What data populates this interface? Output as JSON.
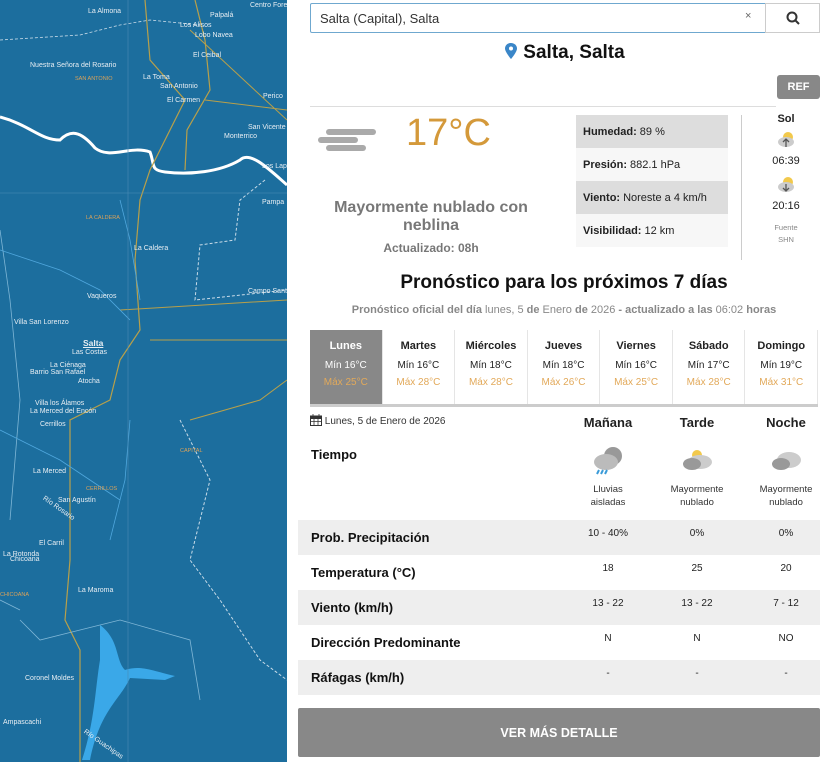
{
  "map": {
    "labels": [
      "La Almona",
      "Los Alisos",
      "Lobo Navea",
      "Palpalá",
      "Centro Forestal",
      "El Ceibal",
      "Nuestra Señora del Rosario",
      "SAN ANTONIO",
      "La Toma",
      "San Antonio",
      "El Carmen",
      "Perico",
      "San Vicente",
      "Monterrico",
      "Los Lapachos",
      "Pampa",
      "LA CALDERA",
      "La Caldera",
      "Vaqueros",
      "Campo Santo",
      "Villa San Lorenzo",
      "Salta",
      "Las Costas",
      "La Ciénaga",
      "Barrio San Rafael",
      "Atocha",
      "Villa los Álamos",
      "La Merced del Encón",
      "Cerrillos",
      "CAPITAL",
      "La Merced",
      "CERRILLOS",
      "San Agustín",
      "Río Rosario",
      "El Carril",
      "La Rotonda",
      "Chicoana",
      "CHICOANA",
      "La Maroma",
      "Coronel Moldes",
      "Ampascachi",
      "Río Guachipas"
    ]
  },
  "search": {
    "value": "Salta (Capital), Salta",
    "clear": "×"
  },
  "location": {
    "title": "Salta, Salta",
    "icon": "map-pin-icon",
    "pin_color": "#3a86c8"
  },
  "ref_label": "REF",
  "current": {
    "icon": "fog-icon",
    "temperature": "17°C",
    "description": "Mayormente nublado con neblina",
    "updated": "Actualizado: 08h",
    "details": [
      {
        "label": "Humedad:",
        "value": "89 %"
      },
      {
        "label": "Presión:",
        "value": "882.1 hPa"
      },
      {
        "label": "Viento:",
        "value": "Noreste a 4 km/h"
      },
      {
        "label": "Visibilidad:",
        "value": "12 km"
      }
    ],
    "sun": {
      "title": "Sol",
      "sunrise": "06:39",
      "sunset": "20:16",
      "source1": "Fuente",
      "source2": "SHN"
    }
  },
  "forecast": {
    "title": "Pronóstico para los próximos 7 días",
    "sub": {
      "a": "Pronóstico oficial del día",
      "b": "lunes, 5",
      "c": "de",
      "d": "Enero",
      "e": "de",
      "f": "2026",
      "g": "- actualizado a las",
      "h": "06:02",
      "i": "horas"
    },
    "days": [
      {
        "name": "Lunes",
        "min": "Mín 16°C",
        "max": "Máx 25°C",
        "active": true
      },
      {
        "name": "Martes",
        "min": "Mín 16°C",
        "max": "Máx 28°C"
      },
      {
        "name": "Miércoles",
        "min": "Mín 18°C",
        "max": "Máx 28°C"
      },
      {
        "name": "Jueves",
        "min": "Mín 18°C",
        "max": "Máx 26°C"
      },
      {
        "name": "Viernes",
        "min": "Mín 16°C",
        "max": "Máx 25°C"
      },
      {
        "name": "Sábado",
        "min": "Mín 17°C",
        "max": "Máx 28°C"
      },
      {
        "name": "Domingo",
        "min": "Mín 19°C",
        "max": "Máx 31°C"
      }
    ],
    "date": "Lunes, 5 de Enero de 2026",
    "periods": [
      "Mañana",
      "Tarde",
      "Noche"
    ],
    "tiempo_label": "Tiempo",
    "weather": [
      {
        "icon": "rain-cloud-icon",
        "text1": "Lluvias",
        "text2": "aisladas"
      },
      {
        "icon": "partly-cloudy-icon",
        "text1": "Mayormente",
        "text2": "nublado"
      },
      {
        "icon": "cloudy-night-icon",
        "text1": "Mayormente",
        "text2": "nublado"
      }
    ],
    "rows": [
      {
        "label": "Prob. Precipitación",
        "values": [
          "10 - 40%",
          "0%",
          "0%"
        ]
      },
      {
        "label": "Temperatura (°C)",
        "values": [
          "18",
          "25",
          "20"
        ]
      },
      {
        "label": "Viento (km/h)",
        "values": [
          "13 - 22",
          "13 - 22",
          "7 - 12"
        ]
      },
      {
        "label": "Dirección Predominante",
        "values": [
          "N",
          "N",
          "NO"
        ]
      },
      {
        "label": "Ráfagas (km/h)",
        "values": [
          "-",
          "-",
          "-"
        ]
      }
    ],
    "more_label": "VER MÁS DETALLE"
  },
  "colors": {
    "accent_temp": "#d4993a",
    "map_bg": "#1c6e9e",
    "active_day": "#888888"
  }
}
